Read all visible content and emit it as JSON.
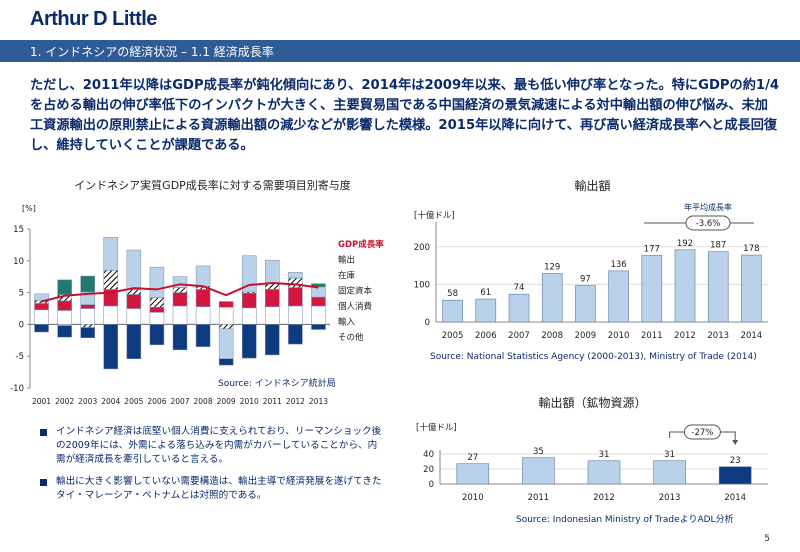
{
  "logo": "Arthur D Little",
  "title": "1. インドネシアの経済状況 – 1.1 経済成長率",
  "lead": "ただし、2011年以降はGDP成長率が鈍化傾向にあり、2014年は2009年以来、最も低い伸び率となった。特にGDPの約1/4を占める輸出の伸び率低下のインパクトが大きく、主要貿易国である中国経済の景気減速による対中輸出額の伸び悩み、未加工資源輸出の原則禁止による資源輸出額の減少などが影響した模様。2015年以降に向けて、再び高い経済成長率へと成長回復し、維持していくことが課題である。",
  "left_chart": {
    "title": "インドネシア実質GDP成長率に対する需要項目別寄与度",
    "source": "Source: インドネシア統計局"
  },
  "bullets": [
    "インドネシア経済は底堅い個人消費に支えられており、リーマンショック後の2009年には、外需による落ち込みを内需がカバーしていることから、内需が経済成長を牽引していると言える。",
    "輸出に大きく影響していない需要構造は、輸出主導で経済発展を遂げてきたタイ・マレーシア・ベトナムとは対照的である。"
  ],
  "export_chart": {
    "title": "輸出額",
    "unit": "[十億ドル]",
    "growth_label": "年平均成長率",
    "growth_value": "-3.6%",
    "source": "Source: National Statistics Agency (2000-2013), Ministry of Trade (2014)"
  },
  "mineral_chart": {
    "title": "輸出額（鉱物資源）",
    "unit": "[十億ドル]",
    "change_value": "-27%",
    "source": "Source: Indonesian Ministry of TradeよりADL分析"
  },
  "page_number": "5",
  "chart_data": [
    {
      "type": "bar",
      "subtype": "stacked-bar-with-line",
      "ylabel": "[%]",
      "ylim": [
        -10,
        15
      ],
      "yticks": [
        -10,
        -5,
        0,
        5,
        10,
        15
      ],
      "categories": [
        "2001",
        "2002",
        "2003",
        "2004",
        "2005",
        "2006",
        "2007",
        "2008",
        "2009",
        "2010",
        "2011",
        "2012",
        "2013"
      ],
      "legend": [
        "GDP成長率",
        "輸出",
        "在庫",
        "固定資本",
        "個人消費",
        "輸入",
        "その他"
      ],
      "colors": {
        "個人消費": "#ffffff",
        "固定資本": "#d3173f",
        "在庫": "hatch",
        "輸出": "#b9d2ea",
        "輸入": "#0e3a80",
        "その他": "#1e7b6e",
        "GDP成長率": "#c8102e"
      },
      "series": [
        {
          "name": "個人消費",
          "values": [
            2.3,
            2.2,
            2.5,
            2.9,
            2.5,
            1.9,
            2.9,
            2.8,
            2.7,
            2.6,
            2.8,
            2.9,
            2.9
          ]
        },
        {
          "name": "固定資本",
          "values": [
            1.0,
            1.5,
            0.6,
            2.6,
            2.2,
            0.8,
            2.1,
            2.7,
            0.9,
            2.3,
            2.7,
            2.9,
            1.4
          ]
        },
        {
          "name": "在庫",
          "values": [
            0.5,
            1.0,
            -0.5,
            3.0,
            0.8,
            1.5,
            0.8,
            0.5,
            -0.7,
            0.2,
            1.0,
            1.5,
            0
          ]
        },
        {
          "name": "輸出",
          "values": [
            1.0,
            -0.2,
            2.0,
            5.2,
            6.2,
            4.8,
            1.7,
            3.2,
            -4.7,
            5.7,
            3.6,
            0.9,
            1.6
          ]
        },
        {
          "name": "その他",
          "values": [
            0,
            2.3,
            2.5,
            0,
            0,
            0,
            0,
            0,
            0,
            0,
            0,
            0,
            0.5
          ]
        },
        {
          "name": "輸入",
          "values": [
            -1.2,
            -1.8,
            -1.6,
            -7.0,
            -5.4,
            -3.2,
            -4.0,
            -3.5,
            -1.0,
            -5.3,
            -4.8,
            -3.1,
            -0.8
          ]
        },
        {
          "name": "GDP成長率",
          "values": [
            3.6,
            4.5,
            4.8,
            5.0,
            5.7,
            5.5,
            6.3,
            6.0,
            4.6,
            6.2,
            6.5,
            6.3,
            5.8
          ]
        }
      ]
    },
    {
      "type": "bar",
      "title": "輸出額",
      "ylabel": "[十億ドル]",
      "ylim": [
        0,
        250
      ],
      "yticks": [
        0,
        100,
        200
      ],
      "categories": [
        "2005",
        "2006",
        "2007",
        "2008",
        "2009",
        "2010",
        "2011",
        "2012",
        "2013",
        "2014"
      ],
      "values": [
        58,
        61,
        74,
        129,
        97,
        136,
        177,
        192,
        187,
        178
      ]
    },
    {
      "type": "bar",
      "title": "輸出額（鉱物資源）",
      "ylabel": "[十億ドル]",
      "ylim": [
        0,
        40
      ],
      "yticks": [
        0,
        20,
        40
      ],
      "categories": [
        "2010",
        "2011",
        "2012",
        "2013",
        "2014"
      ],
      "values": [
        27,
        35,
        31,
        31,
        23
      ]
    }
  ]
}
